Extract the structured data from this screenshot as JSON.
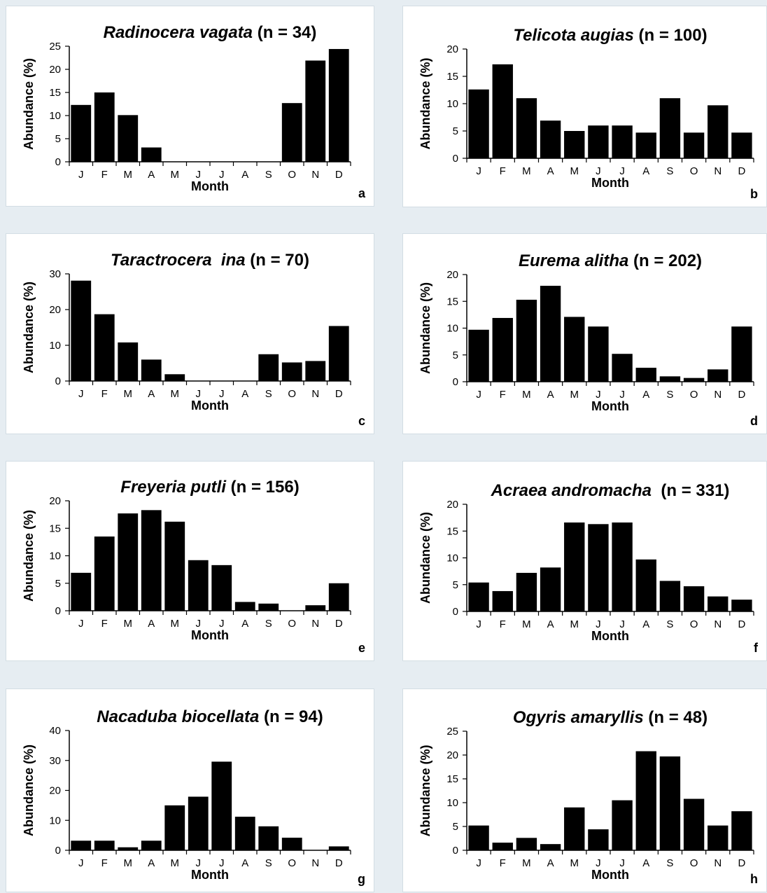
{
  "colors": {
    "background": "#e6edf2",
    "panel": "#ffffff",
    "bar": "#000000"
  },
  "shared": {
    "months": [
      "J",
      "F",
      "M",
      "A",
      "M",
      "J",
      "J",
      "A",
      "S",
      "O",
      "N",
      "D"
    ],
    "xlabel": "Month",
    "ylabel": "Abundance (%)"
  },
  "chart_data": [
    {
      "type": "bar",
      "panel_letter": "a",
      "title_species": "Radinocera vagata",
      "title_n": " (n = 34)",
      "xlabel": "Month",
      "ylabel": "Abundance (%)",
      "categories": [
        "J",
        "F",
        "M",
        "A",
        "M",
        "J",
        "J",
        "A",
        "S",
        "O",
        "N",
        "D"
      ],
      "values": [
        12.3,
        15,
        10.1,
        3.1,
        0,
        0,
        0,
        0,
        0,
        12.7,
        21.9,
        24.4
      ],
      "ylim": [
        0,
        25
      ],
      "yticks": [
        0,
        5,
        10,
        15,
        20,
        25
      ],
      "grid": false
    },
    {
      "type": "bar",
      "panel_letter": "b",
      "title_species": "Telicota augias",
      "title_n": " (n = 100)",
      "xlabel": "Month",
      "ylabel": "Abundance (%)",
      "categories": [
        "J",
        "F",
        "M",
        "A",
        "M",
        "J",
        "J",
        "A",
        "S",
        "O",
        "N",
        "D"
      ],
      "values": [
        12.6,
        17.2,
        11,
        6.9,
        5,
        6,
        6,
        4.7,
        11,
        4.7,
        9.7,
        4.7
      ],
      "ylim": [
        0,
        20
      ],
      "yticks": [
        0,
        5,
        10,
        15,
        20
      ],
      "grid": false
    },
    {
      "type": "bar",
      "panel_letter": "c",
      "title_species": "Taractrocera  ina",
      "title_n": " (n = 70)",
      "xlabel": "Month",
      "ylabel": "Abundance (%)",
      "categories": [
        "J",
        "F",
        "M",
        "A",
        "M",
        "J",
        "J",
        "A",
        "S",
        "O",
        "N",
        "D"
      ],
      "values": [
        28.1,
        18.7,
        10.8,
        6,
        1.9,
        0,
        0,
        0,
        7.5,
        5.2,
        5.6,
        15.4
      ],
      "ylim": [
        0,
        30
      ],
      "yticks": [
        0,
        10,
        20,
        30
      ],
      "grid": false
    },
    {
      "type": "bar",
      "panel_letter": "d",
      "title_species": "Eurema alitha",
      "title_n": " (n = 202)",
      "xlabel": "Month",
      "ylabel": "Abundance (%)",
      "categories": [
        "J",
        "F",
        "M",
        "A",
        "M",
        "J",
        "J",
        "A",
        "S",
        "O",
        "N",
        "D"
      ],
      "values": [
        9.7,
        11.9,
        15.3,
        17.9,
        12.1,
        10.3,
        5.2,
        2.6,
        1,
        0.7,
        2.3,
        10.3
      ],
      "ylim": [
        0,
        20
      ],
      "yticks": [
        0,
        5,
        10,
        15,
        20
      ],
      "grid": false
    },
    {
      "type": "bar",
      "panel_letter": "e",
      "title_species": "Freyeria putli",
      "title_n": " (n = 156)",
      "xlabel": "Month",
      "ylabel": "Abundance (%)",
      "categories": [
        "J",
        "F",
        "M",
        "A",
        "M",
        "J",
        "J",
        "A",
        "S",
        "O",
        "N",
        "D"
      ],
      "values": [
        6.9,
        13.5,
        17.7,
        18.3,
        16.2,
        9.2,
        8.3,
        1.6,
        1.3,
        0,
        1,
        5
      ],
      "ylim": [
        0,
        20
      ],
      "yticks": [
        0,
        5,
        10,
        15,
        20
      ],
      "grid": false
    },
    {
      "type": "bar",
      "panel_letter": "f",
      "title_species": "Acraea andromacha",
      "title_n": "  (n = 331)",
      "xlabel": "Month",
      "ylabel": "Abundance (%)",
      "categories": [
        "J",
        "F",
        "M",
        "A",
        "M",
        "J",
        "J",
        "A",
        "S",
        "O",
        "N",
        "D"
      ],
      "values": [
        5.4,
        3.8,
        7.2,
        8.2,
        16.6,
        16.3,
        16.6,
        9.7,
        5.7,
        4.7,
        2.8,
        2.2
      ],
      "ylim": [
        0,
        20
      ],
      "yticks": [
        0,
        5,
        10,
        15,
        20
      ],
      "grid": false
    },
    {
      "type": "bar",
      "panel_letter": "g",
      "title_species": "Nacaduba biocellata",
      "title_n": " (n = 94)",
      "xlabel": "Month",
      "ylabel": "Abundance (%)",
      "categories": [
        "J",
        "F",
        "M",
        "A",
        "M",
        "J",
        "J",
        "A",
        "S",
        "O",
        "N",
        "D"
      ],
      "values": [
        3.2,
        3.2,
        1,
        3.2,
        15,
        17.9,
        29.6,
        11.2,
        8,
        4.2,
        0,
        1.3
      ],
      "ylim": [
        0,
        40
      ],
      "yticks": [
        0,
        10,
        20,
        30,
        40
      ],
      "grid": false
    },
    {
      "type": "bar",
      "panel_letter": "h",
      "title_species": "Ogyris amaryllis",
      "title_n": " (n = 48)",
      "xlabel": "Month",
      "ylabel": "Abundance (%)",
      "categories": [
        "J",
        "F",
        "M",
        "A",
        "M",
        "J",
        "J",
        "A",
        "S",
        "O",
        "N",
        "D"
      ],
      "values": [
        5.2,
        1.6,
        2.6,
        1.3,
        9,
        4.4,
        10.5,
        20.8,
        19.7,
        10.8,
        5.2,
        8.2
      ],
      "ylim": [
        0,
        25
      ],
      "yticks": [
        0,
        5,
        10,
        15,
        20,
        25
      ],
      "grid": false
    }
  ]
}
